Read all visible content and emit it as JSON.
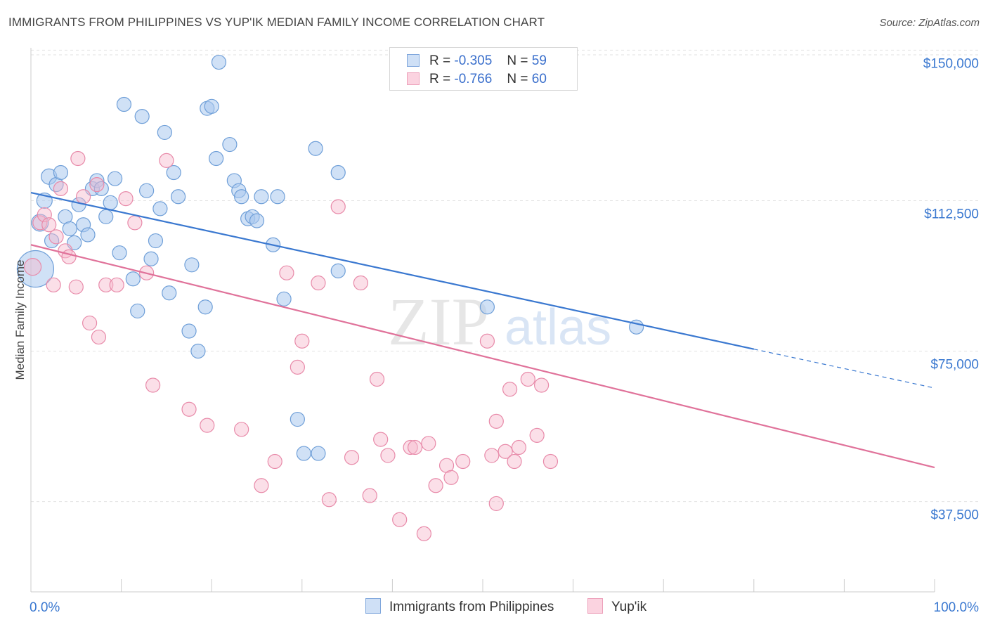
{
  "header": {
    "title": "IMMIGRANTS FROM PHILIPPINES VS YUP'IK MEDIAN FAMILY INCOME CORRELATION CHART",
    "source": "Source: ZipAtlas.com"
  },
  "watermark": {
    "zip": "ZIP",
    "atlas": "atlas"
  },
  "legend": {
    "rows": [
      {
        "r_label": "R =",
        "r_value": "-0.305",
        "n_label": "N =",
        "n_value": "59",
        "color": "#a9c8ef"
      },
      {
        "r_label": "R =",
        "r_value": "-0.766",
        "n_label": "N =",
        "n_value": "60",
        "color": "#f6b8cc"
      }
    ]
  },
  "bottom_legend": [
    {
      "label": "Immigrants from Philippines",
      "color": "#a9c8ef"
    },
    {
      "label": "Yup'ik",
      "color": "#f6b8cc"
    }
  ],
  "chart_data": {
    "type": "scatter",
    "ylabel": "Median Family Income",
    "xlim": [
      0,
      100
    ],
    "ylim": [
      15000,
      152000
    ],
    "y_ticks": [
      {
        "value": 37500,
        "label": "$37,500"
      },
      {
        "value": 75000,
        "label": "$75,000"
      },
      {
        "value": 112500,
        "label": "$112,500"
      },
      {
        "value": 150000,
        "label": "$150,000"
      }
    ],
    "x_tick_labels": [
      {
        "value": 0,
        "label": "0.0%"
      },
      {
        "value": 100,
        "label": "100.0%"
      }
    ],
    "grid": true,
    "series": [
      {
        "name": "Immigrants from Philippines",
        "color": "#a9c8ef",
        "stroke": "#6f9fd8",
        "trend": {
          "x0": 0,
          "y0": 114500,
          "x1": 80,
          "y1": 75500,
          "dash_to_x": 100,
          "dash_to_y": 65800,
          "color": "#3a78d0"
        },
        "points": [
          [
            0.5,
            95500,
            26
          ],
          [
            1,
            107000,
            12
          ],
          [
            1.5,
            112500,
            11
          ],
          [
            2,
            118500,
            11
          ],
          [
            2.3,
            102500,
            10
          ],
          [
            2.8,
            116500,
            10
          ],
          [
            3.3,
            119500,
            10
          ],
          [
            3.8,
            108500,
            10
          ],
          [
            4.3,
            105500,
            10
          ],
          [
            4.8,
            102000,
            10
          ],
          [
            5.3,
            111500,
            10
          ],
          [
            5.8,
            106500,
            10
          ],
          [
            6.3,
            104000,
            10
          ],
          [
            6.8,
            115500,
            10
          ],
          [
            7.3,
            117500,
            10
          ],
          [
            7.8,
            115500,
            10
          ],
          [
            8.3,
            108500,
            10
          ],
          [
            8.8,
            112000,
            10
          ],
          [
            9.3,
            118000,
            10
          ],
          [
            9.8,
            99500,
            10
          ],
          [
            10.3,
            136500,
            10
          ],
          [
            11.3,
            93000,
            10
          ],
          [
            11.8,
            85000,
            10
          ],
          [
            12.3,
            133500,
            10
          ],
          [
            12.8,
            115000,
            10
          ],
          [
            13.3,
            98000,
            10
          ],
          [
            13.8,
            102500,
            10
          ],
          [
            14.3,
            110500,
            10
          ],
          [
            14.8,
            129500,
            10
          ],
          [
            15.3,
            89500,
            10
          ],
          [
            15.8,
            119500,
            10
          ],
          [
            16.3,
            113500,
            10
          ],
          [
            17.5,
            80000,
            10
          ],
          [
            17.8,
            96500,
            10
          ],
          [
            18.5,
            75000,
            10
          ],
          [
            19.3,
            86000,
            10
          ],
          [
            19.5,
            135500,
            10
          ],
          [
            20,
            136000,
            10
          ],
          [
            20.5,
            123000,
            10
          ],
          [
            20.8,
            147000,
            10
          ],
          [
            22,
            126500,
            10
          ],
          [
            22.5,
            117500,
            10
          ],
          [
            23,
            115000,
            10
          ],
          [
            23.3,
            113500,
            10
          ],
          [
            24,
            108000,
            10
          ],
          [
            24.5,
            108500,
            10
          ],
          [
            25,
            107500,
            10
          ],
          [
            25.5,
            113500,
            10
          ],
          [
            26.8,
            101500,
            10
          ],
          [
            27.3,
            113500,
            10
          ],
          [
            28,
            88000,
            10
          ],
          [
            29.5,
            58000,
            10
          ],
          [
            30.2,
            49500,
            10
          ],
          [
            31.5,
            125500,
            10
          ],
          [
            31.8,
            49500,
            10
          ],
          [
            34,
            119500,
            10
          ],
          [
            34,
            95000,
            10
          ],
          [
            50.5,
            86000,
            10
          ],
          [
            67,
            81000,
            10
          ]
        ]
      },
      {
        "name": "Yup'ik",
        "color": "#f6b8cc",
        "stroke": "#e88aa9",
        "trend": {
          "x0": 0,
          "y0": 101500,
          "x1": 100,
          "y1": 46000,
          "color": "#e0729a"
        },
        "points": [
          [
            0.2,
            96000,
            12
          ],
          [
            1,
            107000,
            10
          ],
          [
            1.5,
            109000,
            10
          ],
          [
            2,
            106500,
            10
          ],
          [
            2.5,
            91500,
            10
          ],
          [
            2.8,
            103500,
            10
          ],
          [
            3.3,
            115500,
            10
          ],
          [
            3.8,
            100000,
            10
          ],
          [
            4.2,
            98500,
            10
          ],
          [
            5,
            91000,
            10
          ],
          [
            5.2,
            123000,
            10
          ],
          [
            5.8,
            113500,
            10
          ],
          [
            6.5,
            82000,
            10
          ],
          [
            7.3,
            116500,
            10
          ],
          [
            7.5,
            78500,
            10
          ],
          [
            8.3,
            91500,
            10
          ],
          [
            9.5,
            91500,
            10
          ],
          [
            10.5,
            113000,
            10
          ],
          [
            11.5,
            107000,
            10
          ],
          [
            12.8,
            94500,
            10
          ],
          [
            13.5,
            66500,
            10
          ],
          [
            15,
            122500,
            10
          ],
          [
            17.5,
            60500,
            10
          ],
          [
            19.5,
            56500,
            10
          ],
          [
            23.3,
            55500,
            10
          ],
          [
            25.5,
            41500,
            10
          ],
          [
            27,
            47500,
            10
          ],
          [
            28.3,
            94500,
            10
          ],
          [
            29.5,
            71000,
            10
          ],
          [
            30,
            77500,
            10
          ],
          [
            31.8,
            92000,
            10
          ],
          [
            33,
            38000,
            10
          ],
          [
            34,
            111000,
            10
          ],
          [
            35.5,
            48500,
            10
          ],
          [
            36.5,
            92000,
            10
          ],
          [
            37.5,
            39000,
            10
          ],
          [
            38.3,
            68000,
            10
          ],
          [
            38.7,
            53000,
            10
          ],
          [
            39.5,
            49000,
            10
          ],
          [
            40.8,
            33000,
            10
          ],
          [
            42,
            51000,
            10
          ],
          [
            42.5,
            51000,
            10
          ],
          [
            43.5,
            29500,
            10
          ],
          [
            44,
            52000,
            10
          ],
          [
            44.8,
            41500,
            10
          ],
          [
            46,
            46500,
            10
          ],
          [
            46.5,
            43500,
            10
          ],
          [
            47.8,
            47500,
            10
          ],
          [
            50.5,
            77500,
            10
          ],
          [
            51,
            49000,
            10
          ],
          [
            51.5,
            57500,
            10
          ],
          [
            51.5,
            37000,
            10
          ],
          [
            52.5,
            50000,
            10
          ],
          [
            53,
            65500,
            10
          ],
          [
            53.5,
            47500,
            10
          ],
          [
            54,
            51000,
            10
          ],
          [
            55,
            68000,
            10
          ],
          [
            56,
            54000,
            10
          ],
          [
            56.5,
            66500,
            10
          ],
          [
            57.5,
            47500,
            10
          ]
        ]
      }
    ]
  }
}
